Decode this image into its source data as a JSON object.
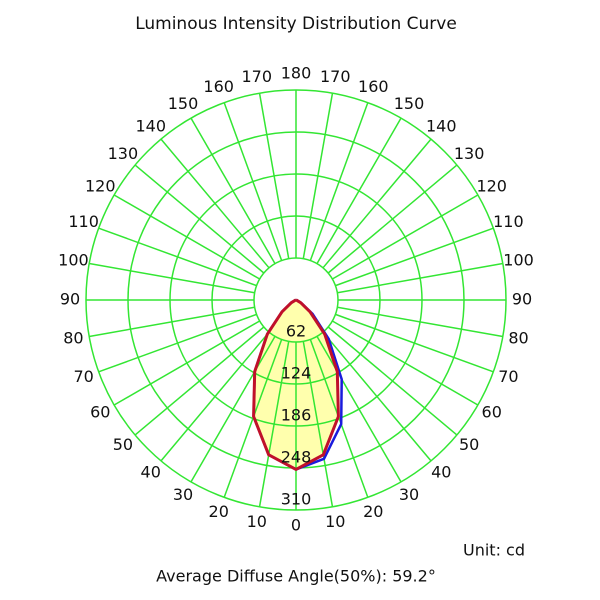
{
  "chart_data": {
    "type": "polar",
    "title": "Luminous Intensity Distribution Curve",
    "unit_label": "Unit: cd",
    "annotation": "Average Diffuse Angle(50%): 59.2°",
    "x": [
      -90,
      -80,
      -70,
      -60,
      -50,
      -40,
      -30,
      -20,
      -10,
      0,
      10,
      20,
      30,
      40,
      50,
      60,
      70,
      80,
      90
    ],
    "series": [
      {
        "color": "#c0102a",
        "fill": "#ffff99",
        "values": [
          0,
          0,
          1,
          8,
          27,
          66,
          122,
          183,
          232,
          250,
          232,
          183,
          122,
          66,
          27,
          8,
          1,
          0,
          0
        ]
      },
      {
        "color": "#1a1adc",
        "values": [
          0,
          0,
          1,
          8,
          27,
          66,
          122,
          183,
          232,
          250,
          238,
          195,
          135,
          75,
          32,
          9,
          2,
          0,
          0
        ]
      }
    ],
    "rlim": [
      0,
      310
    ],
    "rticks": [
      62,
      124,
      186,
      248,
      310
    ],
    "angle_ticks": [
      0,
      10,
      20,
      30,
      40,
      50,
      60,
      70,
      80,
      90,
      100,
      110,
      120,
      130,
      140,
      150,
      160,
      170,
      180
    ],
    "grid_color": "#33e633"
  }
}
